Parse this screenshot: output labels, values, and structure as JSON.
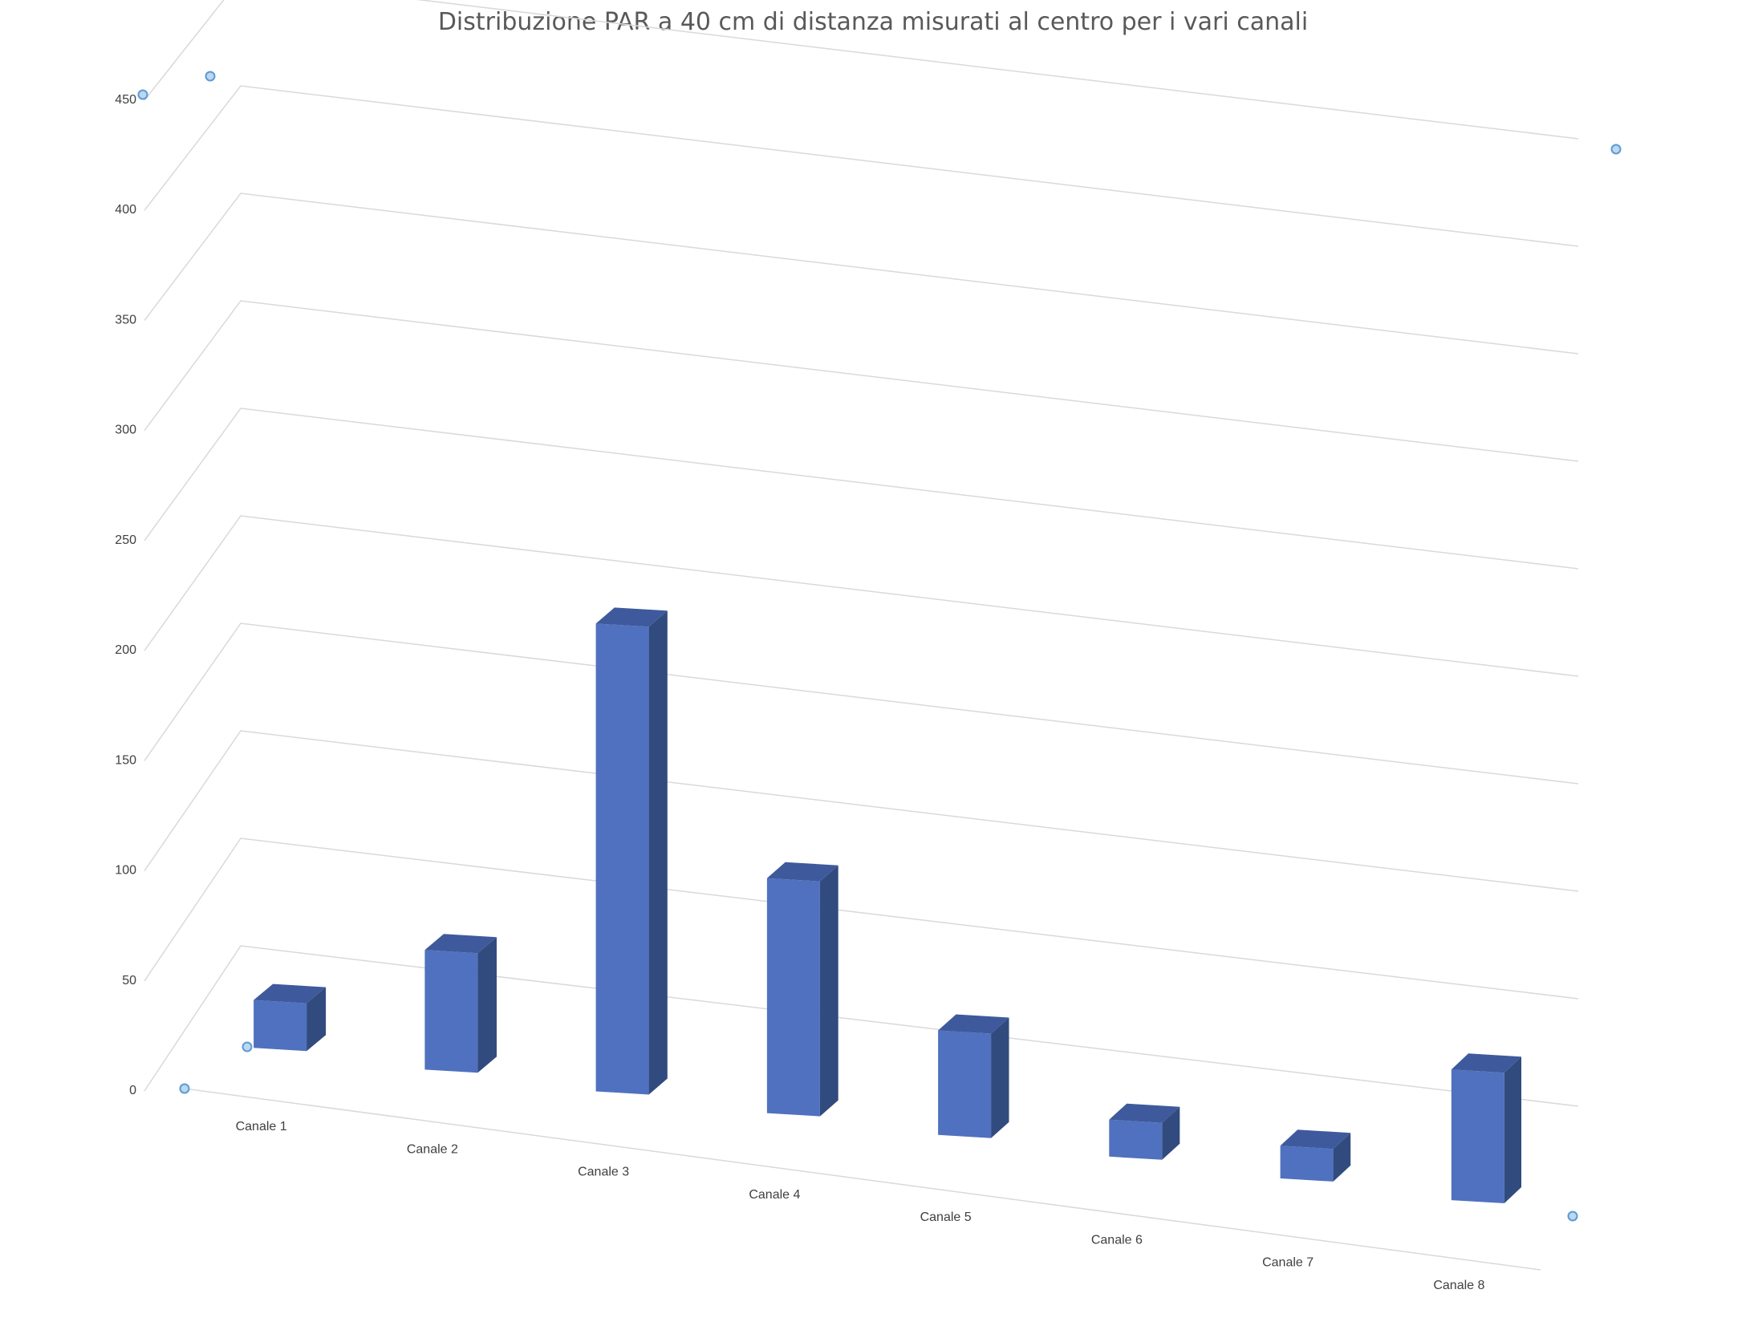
{
  "chart_data": {
    "type": "bar",
    "title": "Distribuzione PAR a 40 cm di distanza misurati al centro per i vari canali",
    "categories": [
      "Canale 1",
      "Canale 2",
      "Canale 3",
      "Canale 4",
      "Canale 5",
      "Canale 6",
      "Canale 7",
      "Canale 8"
    ],
    "values": [
      22,
      55,
      215,
      108,
      48,
      17,
      15,
      60
    ],
    "yticks": [
      "0",
      "50",
      "100",
      "150",
      "200",
      "250",
      "300",
      "350",
      "400",
      "450"
    ],
    "ylim": [
      0,
      450
    ],
    "xlabel": "",
    "ylabel": "",
    "grid": true,
    "legend": "none",
    "three_d": true,
    "colors": {
      "front": "#4f71bf",
      "side": "#324b7f",
      "top": "#3e5a9c",
      "grid": "#d9d9d9",
      "handle": "#5b9bd5"
    }
  }
}
